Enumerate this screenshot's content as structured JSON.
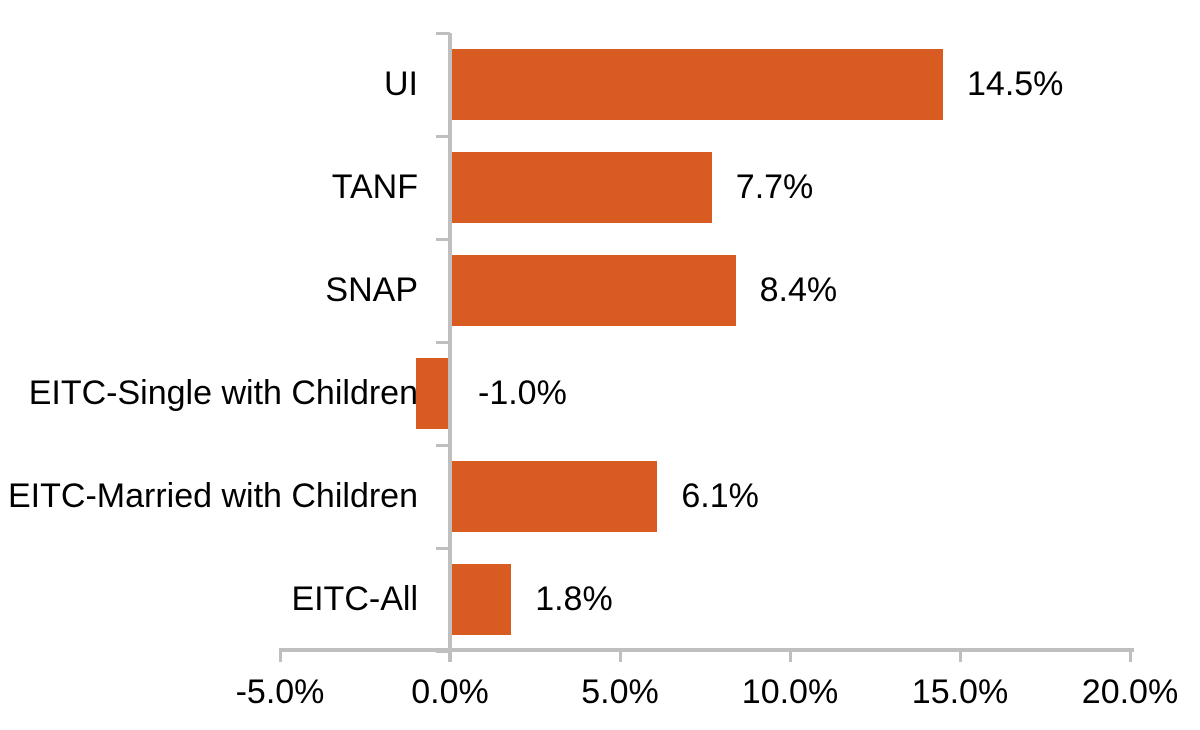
{
  "chart_data": {
    "type": "bar",
    "orientation": "horizontal",
    "title": "",
    "xlabel": "",
    "ylabel": "",
    "legend": "none",
    "grid": "off",
    "categories": [
      "UI",
      "TANF",
      "SNAP",
      "EITC-Single with Children",
      "EITC-Married with Children",
      "EITC-All"
    ],
    "values": [
      14.5,
      7.7,
      8.4,
      -1.0,
      6.1,
      1.8
    ],
    "value_labels": [
      "14.5%",
      "7.7%",
      "8.4%",
      "-1.0%",
      "6.1%",
      "1.8%"
    ],
    "x_ticks": [
      -5,
      0,
      5,
      10,
      15,
      20
    ],
    "x_tick_labels": [
      "-5.0%",
      "0.0%",
      "5.0%",
      "10.0%",
      "15.0%",
      "20.0%"
    ],
    "xlim": [
      -5,
      20
    ],
    "colors": {
      "bar": "#D85C22",
      "axis": "#BFBFBF",
      "text": "#000000",
      "background": "#FFFFFF"
    }
  }
}
